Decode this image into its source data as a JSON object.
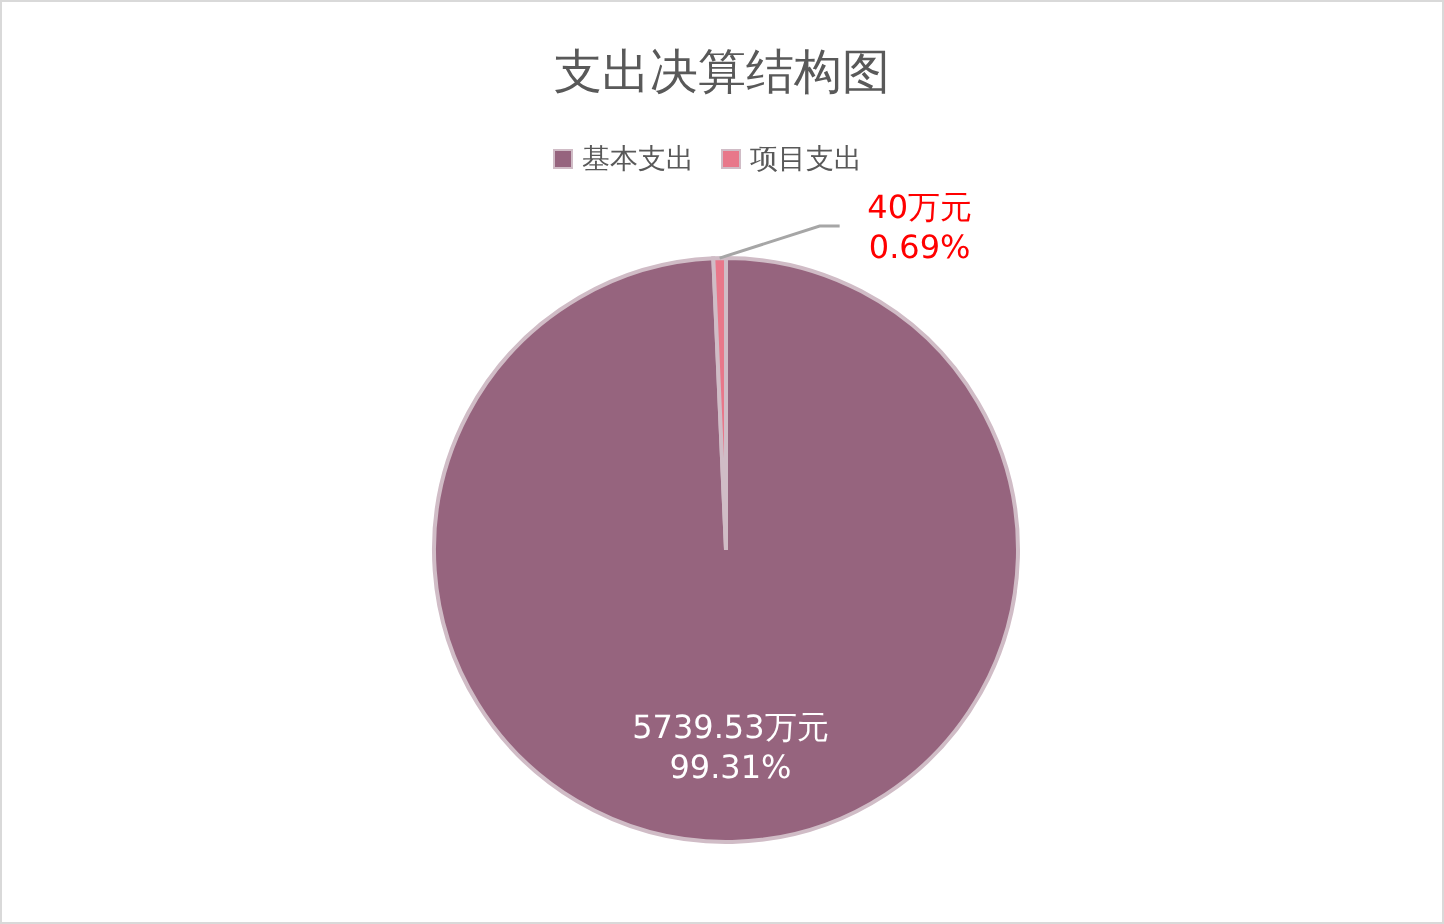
{
  "chart_data": {
    "type": "pie",
    "title": "支出决算结构图",
    "categories": [
      "基本支出",
      "项目支出"
    ],
    "values": [
      5739.53,
      40
    ],
    "colors": [
      "#96647e",
      "#e8778a"
    ],
    "value_labels": [
      "5739.53万元\n99.31%",
      "40万元\n0.69%"
    ],
    "legend": "top"
  }
}
